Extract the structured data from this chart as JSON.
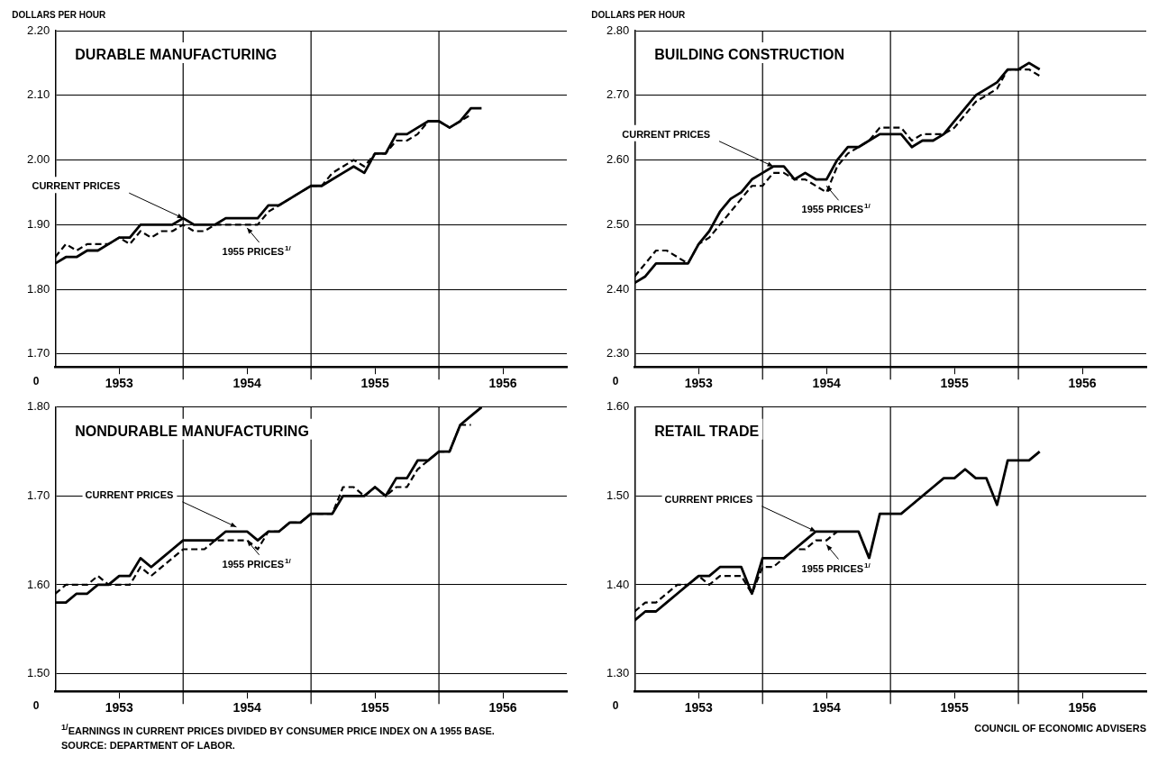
{
  "chart_data": [
    {
      "type": "line",
      "title": "DURABLE MANUFACTURING",
      "ylabel": "DOLLARS PER HOUR",
      "legend": false,
      "grid": "y",
      "x": [
        "1953-01",
        "1953-02",
        "1953-03",
        "1953-04",
        "1953-05",
        "1953-06",
        "1953-07",
        "1953-08",
        "1953-09",
        "1953-10",
        "1953-11",
        "1953-12",
        "1954-01",
        "1954-02",
        "1954-03",
        "1954-04",
        "1954-05",
        "1954-06",
        "1954-07",
        "1954-08",
        "1954-09",
        "1954-10",
        "1954-11",
        "1954-12",
        "1955-01",
        "1955-02",
        "1955-03",
        "1955-04",
        "1955-05",
        "1955-06",
        "1955-07",
        "1955-08",
        "1955-09",
        "1955-10",
        "1955-11",
        "1955-12",
        "1956-01",
        "1956-02",
        "1956-03",
        "1956-04",
        "1956-05"
      ],
      "xlim": [
        "1953-01",
        "1957-01"
      ],
      "xticks": [
        {
          "value": "1953-07",
          "label": "1953"
        },
        {
          "value": "1954-07",
          "label": "1954"
        },
        {
          "value": "1955-07",
          "label": "1955"
        },
        {
          "value": "1956-07",
          "label": "1956"
        }
      ],
      "ylim": [
        1.68,
        2.2
      ],
      "yticks": [
        {
          "value": 1.7,
          "label": "1.70"
        },
        {
          "value": 1.8,
          "label": "1.80"
        },
        {
          "value": 1.9,
          "label": "1.90"
        },
        {
          "value": 2.0,
          "label": "2.00"
        },
        {
          "value": 2.1,
          "label": "2.10"
        },
        {
          "value": 2.2,
          "label": "2.20"
        }
      ],
      "series": [
        {
          "color": "#000000",
          "line_style": "solid",
          "values": [
            1.84,
            1.85,
            1.85,
            1.86,
            1.86,
            1.87,
            1.88,
            1.88,
            1.9,
            1.9,
            1.9,
            1.9,
            1.91,
            1.9,
            1.9,
            1.9,
            1.91,
            1.91,
            1.91,
            1.91,
            1.93,
            1.93,
            1.94,
            1.95,
            1.96,
            1.96,
            1.97,
            1.98,
            1.99,
            1.98,
            2.01,
            2.01,
            2.04,
            2.04,
            2.05,
            2.06,
            2.06,
            2.05,
            2.06,
            2.08,
            2.08
          ]
        },
        {
          "color": "#000000",
          "line_style": "dashed",
          "values": [
            1.85,
            1.87,
            1.86,
            1.87,
            1.87,
            1.87,
            1.88,
            1.87,
            1.89,
            1.88,
            1.89,
            1.89,
            1.9,
            1.89,
            1.89,
            1.9,
            1.9,
            1.9,
            1.9,
            1.9,
            1.92,
            1.93,
            1.94,
            1.95,
            1.96,
            1.96,
            1.98,
            1.99,
            2.0,
            1.99,
            2.01,
            2.01,
            2.03,
            2.03,
            2.04,
            2.06,
            2.06,
            2.05,
            2.06,
            2.07,
            null
          ]
        }
      ],
      "ref_lines": [
        {
          "axis": "x",
          "value": "1954-01"
        },
        {
          "axis": "x",
          "value": "1955-01"
        },
        {
          "axis": "x",
          "value": "1956-01"
        }
      ],
      "annotations": [
        "0",
        {
          "text": "CURRENT PRICES",
          "x": "1954-01",
          "y": 1.91
        },
        {
          "text": "1955 PRICES$^{1/}$",
          "x": "1954-07",
          "y": 1.895
        }
      ]
    },
    {
      "type": "line",
      "title": "BUILDING CONSTRUCTION",
      "ylabel": "DOLLARS PER HOUR",
      "legend": false,
      "grid": "y",
      "x": [
        "1953-01",
        "1953-02",
        "1953-03",
        "1953-04",
        "1953-05",
        "1953-06",
        "1953-07",
        "1953-08",
        "1953-09",
        "1953-10",
        "1953-11",
        "1953-12",
        "1954-01",
        "1954-02",
        "1954-03",
        "1954-04",
        "1954-05",
        "1954-06",
        "1954-07",
        "1954-08",
        "1954-09",
        "1954-10",
        "1954-11",
        "1954-12",
        "1955-01",
        "1955-02",
        "1955-03",
        "1955-04",
        "1955-05",
        "1955-06",
        "1955-07",
        "1955-08",
        "1955-09",
        "1955-10",
        "1955-11",
        "1955-12",
        "1956-01",
        "1956-02",
        "1956-03"
      ],
      "xlim": [
        "1953-01",
        "1957-01"
      ],
      "xticks": [
        {
          "value": "1953-07",
          "label": "1953"
        },
        {
          "value": "1954-07",
          "label": "1954"
        },
        {
          "value": "1955-07",
          "label": "1955"
        },
        {
          "value": "1956-07",
          "label": "1956"
        }
      ],
      "ylim": [
        2.28,
        2.8
      ],
      "yticks": [
        {
          "value": 2.3,
          "label": "2.30"
        },
        {
          "value": 2.4,
          "label": "2.40"
        },
        {
          "value": 2.5,
          "label": "2.50"
        },
        {
          "value": 2.6,
          "label": "2.60"
        },
        {
          "value": 2.7,
          "label": "2.70"
        },
        {
          "value": 2.8,
          "label": "2.80"
        }
      ],
      "series": [
        {
          "color": "#000000",
          "line_style": "solid",
          "values": [
            2.41,
            2.42,
            2.44,
            2.44,
            2.44,
            2.44,
            2.47,
            2.49,
            2.52,
            2.54,
            2.55,
            2.57,
            2.58,
            2.59,
            2.59,
            2.57,
            2.58,
            2.57,
            2.57,
            2.6,
            2.62,
            2.62,
            2.63,
            2.64,
            2.64,
            2.64,
            2.62,
            2.63,
            2.63,
            2.64,
            2.66,
            2.68,
            2.7,
            2.71,
            2.72,
            2.74,
            2.74,
            2.75,
            2.74
          ]
        },
        {
          "color": "#000000",
          "line_style": "dashed",
          "values": [
            2.42,
            2.44,
            2.46,
            2.46,
            2.45,
            2.44,
            2.47,
            2.48,
            2.5,
            2.52,
            2.54,
            2.56,
            2.56,
            2.58,
            2.58,
            2.57,
            2.57,
            2.56,
            2.55,
            2.59,
            2.61,
            2.62,
            2.63,
            2.65,
            2.65,
            2.65,
            2.63,
            2.64,
            2.64,
            2.64,
            2.65,
            2.67,
            2.69,
            2.7,
            2.71,
            2.74,
            2.74,
            2.74,
            2.73
          ]
        }
      ],
      "ref_lines": [
        {
          "axis": "x",
          "value": "1954-01"
        },
        {
          "axis": "x",
          "value": "1955-01"
        },
        {
          "axis": "x",
          "value": "1956-01"
        }
      ],
      "annotations": [
        "0",
        {
          "text": "CURRENT PRICES",
          "x": "1954-02",
          "y": 2.59
        },
        {
          "text": "1955 PRICES$^{1/}$",
          "x": "1954-07",
          "y": 2.56
        }
      ]
    },
    {
      "type": "line",
      "title": "NONDURABLE MANUFACTURING",
      "legend": false,
      "grid": "y",
      "x": [
        "1953-01",
        "1953-02",
        "1953-03",
        "1953-04",
        "1953-05",
        "1953-06",
        "1953-07",
        "1953-08",
        "1953-09",
        "1953-10",
        "1953-11",
        "1953-12",
        "1954-01",
        "1954-02",
        "1954-03",
        "1954-04",
        "1954-05",
        "1954-06",
        "1954-07",
        "1954-08",
        "1954-09",
        "1954-10",
        "1954-11",
        "1954-12",
        "1955-01",
        "1955-02",
        "1955-03",
        "1955-04",
        "1955-05",
        "1955-06",
        "1955-07",
        "1955-08",
        "1955-09",
        "1955-10",
        "1955-11",
        "1955-12",
        "1956-01",
        "1956-02",
        "1956-03",
        "1956-04",
        "1956-05"
      ],
      "xlim": [
        "1953-01",
        "1957-01"
      ],
      "xticks": [
        {
          "value": "1953-07",
          "label": "1953"
        },
        {
          "value": "1954-07",
          "label": "1954"
        },
        {
          "value": "1955-07",
          "label": "1955"
        },
        {
          "value": "1956-07",
          "label": "1956"
        }
      ],
      "ylim": [
        1.48,
        1.8
      ],
      "yticks": [
        {
          "value": 1.5,
          "label": "1.50"
        },
        {
          "value": 1.6,
          "label": "1.60"
        },
        {
          "value": 1.7,
          "label": "1.70"
        },
        {
          "value": 1.8,
          "label": "1.80"
        }
      ],
      "series": [
        {
          "color": "#000000",
          "line_style": "solid",
          "values": [
            1.58,
            1.58,
            1.59,
            1.59,
            1.6,
            1.6,
            1.61,
            1.61,
            1.63,
            1.62,
            1.63,
            1.64,
            1.65,
            1.65,
            1.65,
            1.65,
            1.66,
            1.66,
            1.66,
            1.65,
            1.66,
            1.66,
            1.67,
            1.67,
            1.68,
            1.68,
            1.68,
            1.7,
            1.7,
            1.7,
            1.71,
            1.7,
            1.72,
            1.72,
            1.74,
            1.74,
            1.75,
            1.75,
            1.78,
            1.79,
            1.8
          ]
        },
        {
          "color": "#000000",
          "line_style": "dashed",
          "values": [
            1.59,
            1.6,
            1.6,
            1.6,
            1.61,
            1.6,
            1.6,
            1.6,
            1.62,
            1.61,
            1.62,
            1.63,
            1.64,
            1.64,
            1.64,
            1.65,
            1.65,
            1.65,
            1.65,
            1.64,
            1.66,
            1.66,
            1.67,
            1.67,
            1.68,
            1.68,
            1.68,
            1.71,
            1.71,
            1.7,
            1.71,
            1.7,
            1.71,
            1.71,
            1.73,
            1.74,
            1.75,
            1.75,
            1.78,
            1.78,
            null
          ]
        }
      ],
      "ref_lines": [
        {
          "axis": "x",
          "value": "1954-01"
        },
        {
          "axis": "x",
          "value": "1955-01"
        },
        {
          "axis": "x",
          "value": "1956-01"
        }
      ],
      "annotations": [
        "0",
        {
          "text": "CURRENT PRICES",
          "x": "1954-06",
          "y": 1.665
        },
        {
          "text": "1955 PRICES$^{1/}$",
          "x": "1954-07",
          "y": 1.65
        },
        "$^{1/}$EARNINGS IN CURRENT PRICES DIVIDED BY CONSUMER PRICE INDEX ON A 1955 BASE.",
        "SOURCE: DEPARTMENT OF LABOR."
      ]
    },
    {
      "type": "line",
      "title": "RETAIL TRADE",
      "legend": false,
      "grid": "y",
      "x": [
        "1953-01",
        "1953-02",
        "1953-03",
        "1953-04",
        "1953-05",
        "1953-06",
        "1953-07",
        "1953-08",
        "1953-09",
        "1953-10",
        "1953-11",
        "1953-12",
        "1954-01",
        "1954-02",
        "1954-03",
        "1954-04",
        "1954-05",
        "1954-06",
        "1954-07",
        "1954-08",
        "1954-09",
        "1954-10",
        "1954-11",
        "1954-12",
        "1955-01",
        "1955-02",
        "1955-03",
        "1955-04",
        "1955-05",
        "1955-06",
        "1955-07",
        "1955-08",
        "1955-09",
        "1955-10",
        "1955-11",
        "1955-12",
        "1956-01",
        "1956-02",
        "1956-03"
      ],
      "xlim": [
        "1953-01",
        "1957-01"
      ],
      "xticks": [
        {
          "value": "1953-07",
          "label": "1953"
        },
        {
          "value": "1954-07",
          "label": "1954"
        },
        {
          "value": "1955-07",
          "label": "1955"
        },
        {
          "value": "1956-07",
          "label": "1956"
        }
      ],
      "ylim": [
        1.28,
        1.6
      ],
      "yticks": [
        {
          "value": 1.3,
          "label": "1.30"
        },
        {
          "value": 1.4,
          "label": "1.40"
        },
        {
          "value": 1.5,
          "label": "1.50"
        },
        {
          "value": 1.6,
          "label": "1.60"
        }
      ],
      "series": [
        {
          "color": "#000000",
          "line_style": "solid",
          "values": [
            1.36,
            1.37,
            1.37,
            1.38,
            1.39,
            1.4,
            1.41,
            1.41,
            1.42,
            1.42,
            1.42,
            1.39,
            1.43,
            1.43,
            1.43,
            1.44,
            1.45,
            1.46,
            1.46,
            1.46,
            1.46,
            1.46,
            1.43,
            1.48,
            1.48,
            1.48,
            1.49,
            1.5,
            1.51,
            1.52,
            1.52,
            1.53,
            1.52,
            1.52,
            1.49,
            1.54,
            1.54,
            1.54,
            1.55
          ]
        },
        {
          "color": "#000000",
          "line_style": "dashed",
          "values": [
            1.37,
            1.38,
            1.38,
            1.39,
            1.4,
            1.4,
            1.41,
            1.4,
            1.41,
            1.41,
            1.41,
            1.39,
            1.42,
            1.42,
            1.43,
            1.44,
            1.44,
            1.45,
            1.45,
            1.46,
            null,
            null,
            null,
            null,
            null,
            null,
            null,
            null,
            null,
            null,
            null,
            null,
            null,
            null,
            null,
            null,
            null,
            null,
            null
          ]
        }
      ],
      "ref_lines": [
        {
          "axis": "x",
          "value": "1954-01"
        },
        {
          "axis": "x",
          "value": "1955-01"
        },
        {
          "axis": "x",
          "value": "1956-01"
        }
      ],
      "annotations": [
        "0",
        {
          "text": "CURRENT PRICES",
          "x": "1954-06",
          "y": 1.46
        },
        {
          "text": "1955 PRICES$^{1/}$",
          "x": "1954-07",
          "y": 1.445
        },
        "COUNCIL OF ECONOMIC ADVISERS"
      ]
    }
  ]
}
